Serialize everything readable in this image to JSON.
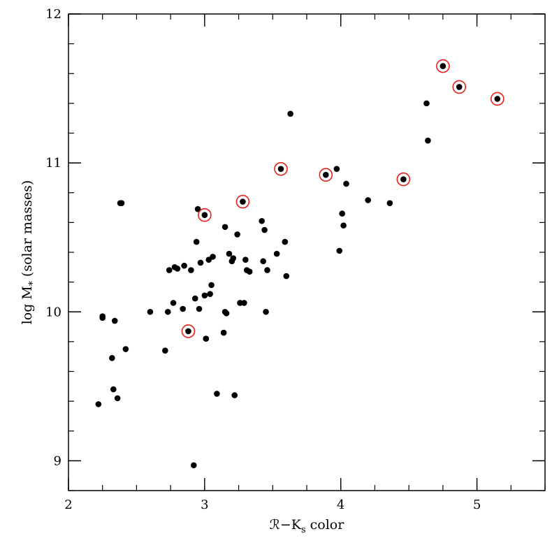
{
  "chart_data": {
    "type": "scatter",
    "title": "",
    "xlabel": "ℛ−K",
    "xlabel_sub": "s",
    "xlabel_suffix": " color",
    "ylabel": "log M",
    "ylabel_sub": "*",
    "ylabel_suffix": " (solar masses)",
    "xlim": [
      2.0,
      5.5
    ],
    "ylim": [
      8.8,
      12.0
    ],
    "xticks": [
      2,
      3,
      4,
      5
    ],
    "yticks": [
      9,
      10,
      11,
      12
    ],
    "x_minor_step": 0.25,
    "y_minor_step": 0.2,
    "grid": false,
    "colors": {
      "point": "#000000",
      "highlight": "#e8201c"
    },
    "series": [
      {
        "marker": "filled-circle",
        "points": [
          [
            2.22,
            9.38
          ],
          [
            2.25,
            9.97
          ],
          [
            2.25,
            9.96
          ],
          [
            2.32,
            9.69
          ],
          [
            2.33,
            9.48
          ],
          [
            2.34,
            9.94
          ],
          [
            2.36,
            9.42
          ],
          [
            2.38,
            10.73
          ],
          [
            2.39,
            10.73
          ],
          [
            2.42,
            9.75
          ],
          [
            2.6,
            10.0
          ],
          [
            2.71,
            9.74
          ],
          [
            2.73,
            10.0
          ],
          [
            2.74,
            10.28
          ],
          [
            2.77,
            10.06
          ],
          [
            2.78,
            10.3
          ],
          [
            2.8,
            10.29
          ],
          [
            2.84,
            10.02
          ],
          [
            2.85,
            10.31
          ],
          [
            2.88,
            9.87
          ],
          [
            2.9,
            10.28
          ],
          [
            2.92,
            8.97
          ],
          [
            2.93,
            10.09
          ],
          [
            2.94,
            10.47
          ],
          [
            2.95,
            10.69
          ],
          [
            2.96,
            10.02
          ],
          [
            2.97,
            10.33
          ],
          [
            3.0,
            10.65
          ],
          [
            3.0,
            10.11
          ],
          [
            3.01,
            9.82
          ],
          [
            3.03,
            10.35
          ],
          [
            3.04,
            10.12
          ],
          [
            3.05,
            10.18
          ],
          [
            3.06,
            10.37
          ],
          [
            3.09,
            9.45
          ],
          [
            3.14,
            9.86
          ],
          [
            3.15,
            10.57
          ],
          [
            3.15,
            10.0
          ],
          [
            3.16,
            9.99
          ],
          [
            3.18,
            10.39
          ],
          [
            3.2,
            10.34
          ],
          [
            3.21,
            10.36
          ],
          [
            3.22,
            9.44
          ],
          [
            3.24,
            10.52
          ],
          [
            3.26,
            10.06
          ],
          [
            3.28,
            10.74
          ],
          [
            3.29,
            10.06
          ],
          [
            3.3,
            10.35
          ],
          [
            3.31,
            10.28
          ],
          [
            3.33,
            10.27
          ],
          [
            3.42,
            10.61
          ],
          [
            3.43,
            10.34
          ],
          [
            3.44,
            10.55
          ],
          [
            3.45,
            10.0
          ],
          [
            3.46,
            10.28
          ],
          [
            3.53,
            10.39
          ],
          [
            3.56,
            10.96
          ],
          [
            3.59,
            10.47
          ],
          [
            3.6,
            10.24
          ],
          [
            3.63,
            11.33
          ],
          [
            3.89,
            10.92
          ],
          [
            3.97,
            10.96
          ],
          [
            3.99,
            10.41
          ],
          [
            4.01,
            10.66
          ],
          [
            4.02,
            10.58
          ],
          [
            4.04,
            10.86
          ],
          [
            4.2,
            10.75
          ],
          [
            4.36,
            10.73
          ],
          [
            4.46,
            10.89
          ],
          [
            4.63,
            11.4
          ],
          [
            4.64,
            11.15
          ],
          [
            4.75,
            11.65
          ],
          [
            4.87,
            11.51
          ],
          [
            5.15,
            11.43
          ],
          [
            3.01,
            9.82
          ]
        ]
      },
      {
        "marker": "open-circle",
        "points": [
          [
            2.88,
            9.87
          ],
          [
            3.0,
            10.65
          ],
          [
            3.28,
            10.74
          ],
          [
            3.56,
            10.96
          ],
          [
            3.89,
            10.92
          ],
          [
            4.46,
            10.89
          ],
          [
            4.75,
            11.65
          ],
          [
            4.87,
            11.51
          ],
          [
            5.15,
            11.43
          ]
        ]
      }
    ]
  }
}
